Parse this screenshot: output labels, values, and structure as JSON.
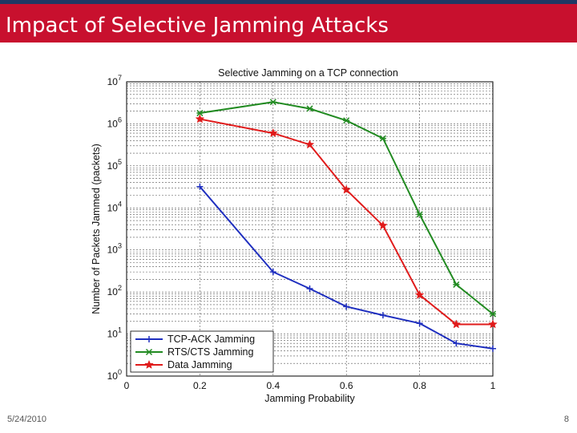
{
  "slide": {
    "title": "Impact of Selective Jamming Attacks",
    "date": "5/24/2010",
    "page_number": "8"
  },
  "colors": {
    "title_bar": "#c8102e",
    "top_line": "#1f3864"
  },
  "chart_data": {
    "type": "line",
    "title": "Selective Jamming on a TCP connection",
    "xlabel": "Jamming Probability",
    "ylabel": "Number of Packets Jammed (packets)",
    "xlim": [
      0,
      1
    ],
    "ylim": [
      1,
      10000000
    ],
    "y_scale": "log",
    "grid": true,
    "legend_position": "bottom-left",
    "x_ticks": [
      {
        "value": 0,
        "label": "0"
      },
      {
        "value": 0.2,
        "label": "0.2"
      },
      {
        "value": 0.4,
        "label": "0.4"
      },
      {
        "value": 0.6,
        "label": "0.6"
      },
      {
        "value": 0.8,
        "label": "0.8"
      },
      {
        "value": 1,
        "label": "1"
      }
    ],
    "y_ticks": [
      {
        "value": 1,
        "base": "10",
        "exp": "0"
      },
      {
        "value": 10,
        "base": "10",
        "exp": "1"
      },
      {
        "value": 100,
        "base": "10",
        "exp": "2"
      },
      {
        "value": 1000,
        "base": "10",
        "exp": "3"
      },
      {
        "value": 10000,
        "base": "10",
        "exp": "4"
      },
      {
        "value": 100000,
        "base": "10",
        "exp": "5"
      },
      {
        "value": 1000000,
        "base": "10",
        "exp": "6"
      },
      {
        "value": 10000000,
        "base": "10",
        "exp": "7"
      }
    ],
    "series": [
      {
        "name": "TCP-ACK Jamming",
        "color": "#1f2fbf",
        "marker": "plus",
        "x": [
          0.2,
          0.4,
          0.5,
          0.6,
          0.7,
          0.8,
          0.9,
          1.0
        ],
        "y": [
          32000,
          300,
          120,
          45,
          28,
          18,
          6,
          4.5
        ]
      },
      {
        "name": "RTS/CTS Jamming",
        "color": "#228b22",
        "marker": "x",
        "x": [
          0.2,
          0.4,
          0.5,
          0.6,
          0.7,
          0.8,
          0.9,
          1.0
        ],
        "y": [
          1800000,
          3300000,
          2300000,
          1200000,
          450000,
          7000,
          150,
          30
        ]
      },
      {
        "name": "Data Jamming",
        "color": "#e01b1b",
        "marker": "star",
        "x": [
          0.2,
          0.4,
          0.5,
          0.6,
          0.7,
          0.8,
          0.9,
          1.0
        ],
        "y": [
          1300000,
          600000,
          320000,
          27000,
          3800,
          85,
          17,
          17
        ]
      }
    ]
  }
}
